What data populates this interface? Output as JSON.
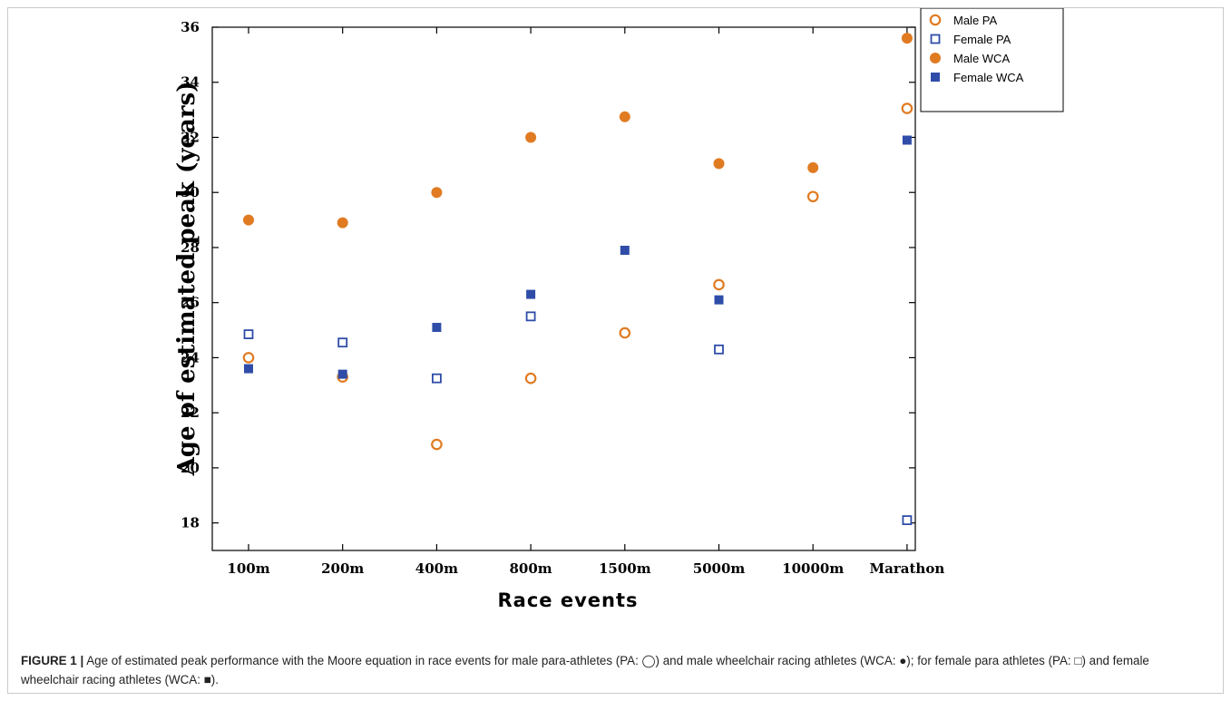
{
  "caption": {
    "label": "FIGURE 1 |",
    "text": "Age of estimated peak performance with the Moore equation in race events for male para-athletes (PA: ◯) and male wheelchair racing athletes (WCA: ●); for female para athletes (PA: □) and female wheelchair racing athletes (WCA: ■)."
  },
  "chart_data": {
    "type": "scatter",
    "categories": [
      "100m",
      "200m",
      "400m",
      "800m",
      "1500m",
      "5000m",
      "10000m",
      "Marathon"
    ],
    "xlabel": "Race events",
    "ylabel": "Age of estimated peak (years)",
    "ylim": [
      17,
      36
    ],
    "yticks": [
      18,
      20,
      22,
      24,
      26,
      28,
      30,
      32,
      34,
      36
    ],
    "legend_position": "top-right",
    "grid": false,
    "series": [
      {
        "name": "Male PA",
        "marker": "open-circle",
        "color": "#e07b22",
        "values": [
          24.0,
          23.3,
          20.85,
          23.25,
          24.9,
          26.65,
          29.85,
          33.05
        ]
      },
      {
        "name": "Female PA",
        "marker": "open-square",
        "color": "#2f4da8",
        "values": [
          24.85,
          24.55,
          23.25,
          25.5,
          null,
          24.3,
          null,
          18.1
        ]
      },
      {
        "name": "Male WCA",
        "marker": "filled-circle",
        "color": "#e07b22",
        "values": [
          29.0,
          28.9,
          30.0,
          32.0,
          32.75,
          31.05,
          30.9,
          35.6
        ]
      },
      {
        "name": "Female WCA",
        "marker": "filled-square",
        "color": "#2f4da8",
        "values": [
          23.6,
          23.4,
          25.1,
          26.3,
          27.9,
          26.1,
          null,
          31.9
        ]
      }
    ]
  }
}
